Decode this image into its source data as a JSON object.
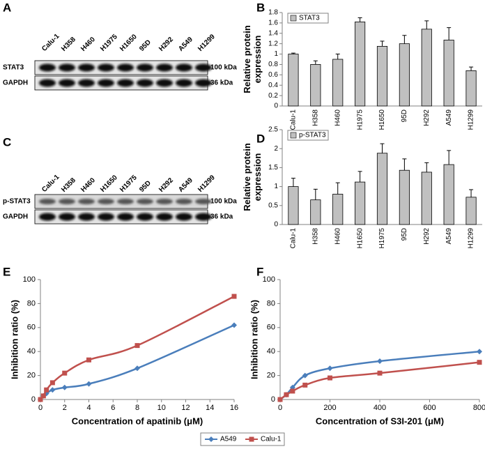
{
  "blots": [
    {
      "panel": "A",
      "lanes": [
        "Calu-1",
        "H358",
        "H460",
        "H1975",
        "H1650",
        "95D",
        "H292",
        "A549",
        "H1299"
      ],
      "rows": [
        {
          "label": "STAT3",
          "size": "100 kDa"
        },
        {
          "label": "GAPDH",
          "size": "36 kDa"
        }
      ]
    },
    {
      "panel": "C",
      "lanes": [
        "Calu-1",
        "H358",
        "H460",
        "H1650",
        "H1975",
        "95D",
        "H292",
        "A549",
        "H1299"
      ],
      "rows": [
        {
          "label": "p-STAT3",
          "size": "100 kDa"
        },
        {
          "label": "GAPDH",
          "size": "36 kDa"
        }
      ]
    }
  ],
  "chart_data": [
    {
      "type": "bar",
      "panel": "B",
      "ylabel": "Relative protein expression",
      "categories": [
        "Calu-1",
        "H358",
        "H460",
        "H1975",
        "H1650",
        "95D",
        "H292",
        "A549",
        "H1299"
      ],
      "series": [
        {
          "name": "STAT3",
          "color": "#c0c0c0",
          "values": [
            1.0,
            0.8,
            0.9,
            1.62,
            1.15,
            1.2,
            1.48,
            1.27,
            0.68
          ],
          "errors": [
            0.02,
            0.07,
            0.1,
            0.08,
            0.1,
            0.16,
            0.16,
            0.24,
            0.07
          ]
        }
      ],
      "ylim": [
        0,
        1.8
      ],
      "yticks": [
        0,
        0.2,
        0.4,
        0.6,
        0.8,
        1,
        1.2,
        1.4,
        1.6,
        1.8
      ],
      "legend": "top-left"
    },
    {
      "type": "bar",
      "panel": "D",
      "ylabel": "Relative protein expression",
      "categories": [
        "Calu-1",
        "H358",
        "H460",
        "H1650",
        "H1975",
        "95D",
        "H292",
        "A549",
        "H1299"
      ],
      "series": [
        {
          "name": "p-STAT3",
          "color": "#c0c0c0",
          "values": [
            1.0,
            0.65,
            0.8,
            1.12,
            1.88,
            1.43,
            1.38,
            1.58,
            0.72
          ],
          "errors": [
            0.22,
            0.28,
            0.3,
            0.28,
            0.25,
            0.3,
            0.25,
            0.37,
            0.2
          ]
        }
      ],
      "ylim": [
        0,
        2.5
      ],
      "yticks": [
        0,
        0.5,
        1,
        1.5,
        2,
        2.5
      ],
      "legend": "top-left"
    },
    {
      "type": "line",
      "panel": "E",
      "xlabel": "Concentration of apatinib (μM)",
      "ylabel": "Inhibition ratio (%)",
      "x": [
        0,
        0.25,
        0.5,
        1,
        2,
        4,
        8,
        16
      ],
      "series": [
        {
          "name": "A549",
          "color": "#4a7ebb",
          "marker": "diamond",
          "values": [
            0,
            3,
            5,
            8,
            10,
            13,
            26,
            62
          ]
        },
        {
          "name": "Calu-1",
          "color": "#c0504d",
          "marker": "square",
          "values": [
            0,
            3,
            8,
            14,
            22,
            33,
            45,
            86
          ]
        }
      ],
      "xlim": [
        0,
        16
      ],
      "xticks": [
        0,
        2,
        4,
        6,
        8,
        10,
        12,
        14,
        16
      ],
      "ylim": [
        0,
        100
      ],
      "yticks": [
        0,
        20,
        40,
        60,
        80,
        100
      ],
      "legend": "bottom"
    },
    {
      "type": "line",
      "panel": "F",
      "xlabel": "Concentration of S3I-201 (μM)",
      "ylabel": "Inhibition ratio (%)",
      "x": [
        0,
        25,
        50,
        100,
        200,
        400,
        800
      ],
      "series": [
        {
          "name": "A549",
          "color": "#4a7ebb",
          "marker": "diamond",
          "values": [
            0,
            4,
            10,
            20,
            26,
            32,
            40
          ]
        },
        {
          "name": "Calu-1",
          "color": "#c0504d",
          "marker": "square",
          "values": [
            0,
            4,
            7,
            12,
            18,
            22,
            31
          ]
        }
      ],
      "xlim": [
        0,
        800
      ],
      "xticks": [
        0,
        200,
        400,
        600,
        800
      ],
      "ylim": [
        0,
        100
      ],
      "yticks": [
        0,
        20,
        40,
        60,
        80,
        100
      ],
      "legend": "bottom"
    }
  ]
}
